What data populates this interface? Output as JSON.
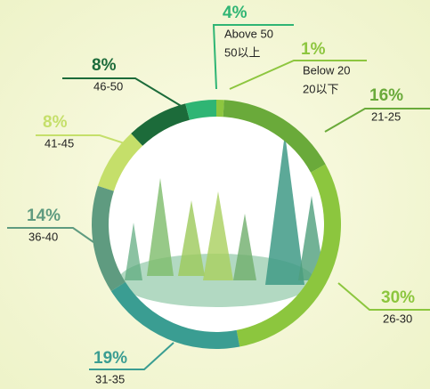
{
  "chart_data": {
    "type": "donut",
    "categories": [
      [
        "Below 20",
        "20以下"
      ],
      "21-25",
      "26-30",
      "31-35",
      "36-40",
      "41-45",
      "46-50",
      [
        "Above 50",
        "50以上"
      ]
    ],
    "values": [
      1,
      16,
      30,
      19,
      14,
      8,
      8,
      4
    ],
    "value_labels": [
      "1%",
      "16%",
      "30%",
      "19%",
      "14%",
      "8%",
      "8%",
      "4%"
    ],
    "colors": [
      "#8dc63f",
      "#6aaa3a",
      "#8cc63e",
      "#3a9d92",
      "#5f9b80",
      "#c5df6a",
      "#1c6b3a",
      "#2fb574"
    ]
  }
}
